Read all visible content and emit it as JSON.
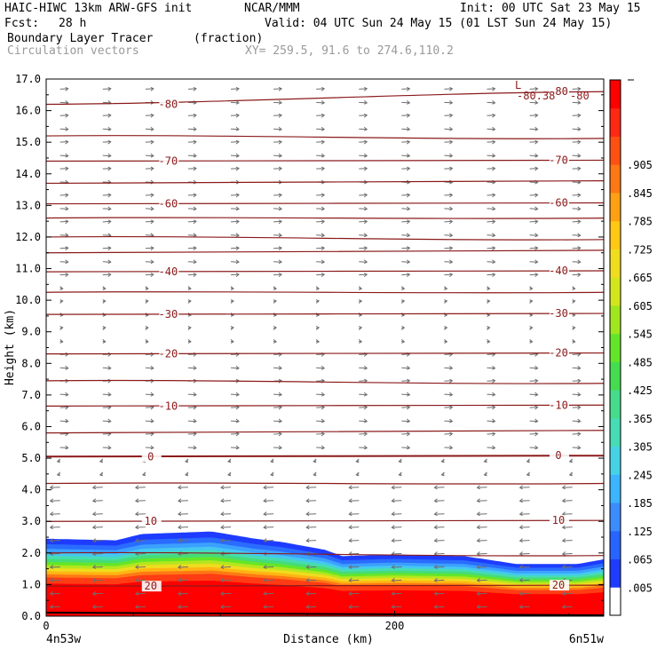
{
  "header": {
    "model": "HAIC-HIWC 13km ARW-GFS init",
    "org": "NCAR/MMM",
    "init": "Init: 00 UTC Sat 23 May 15",
    "fcst_label": "Fcst:",
    "fcst_value": "28 h",
    "valid": "Valid: 04 UTC Sun 24 May 15 (01 LST Sun 24 May 15)",
    "field_name": "Boundary Layer Tracer",
    "field_units": "(fraction)",
    "vector_name": "Circulation vectors",
    "xy_info": "XY= 259.5, 91.6 to 274.6,110.2"
  },
  "colors": {
    "contour": "#8b1a1a",
    "vector": "#6e6e6e",
    "colorbar": [
      "#ffffff",
      "#1e3cff",
      "#2864ff",
      "#3c8cff",
      "#3cb4ff",
      "#46d2e6",
      "#46dcb4",
      "#46dc8c",
      "#46dc50",
      "#64e628",
      "#a0e61e",
      "#d2e61e",
      "#f0dc1e",
      "#ffc814",
      "#ffa014",
      "#ff7814",
      "#ff5014",
      "#ff2814",
      "#ff0000"
    ]
  },
  "chart_data": {
    "type": "cross-section",
    "ylabel": "Height (km)",
    "xlabel": "Distance (km)",
    "ylim": [
      0,
      17
    ],
    "xlim": [
      0,
      320
    ],
    "y_ticks": [
      "0.0",
      "1.0",
      "2.0",
      "3.0",
      "4.0",
      "5.0",
      "6.0",
      "7.0",
      "8.0",
      "9.0",
      "10.0",
      "11.0",
      "12.0",
      "13.0",
      "14.0",
      "15.0",
      "16.0",
      "17.0"
    ],
    "x_ticks": [
      {
        "value": 0,
        "label": "0"
      },
      {
        "value": 200,
        "label": "200"
      }
    ],
    "x_end_labels": [
      "4n53w",
      "6n51w"
    ],
    "colorbar_labels": [
      ".005",
      ".065",
      ".125",
      ".185",
      ".245",
      ".305",
      ".365",
      ".425",
      ".485",
      ".545",
      ".605",
      ".665",
      ".725",
      ".785",
      ".845",
      ".905"
    ],
    "colorbar_levels": [
      0.005,
      0.065,
      0.125,
      0.185,
      0.245,
      0.305,
      0.365,
      0.425,
      0.485,
      0.545,
      0.605,
      0.665,
      0.725,
      0.785,
      0.845,
      0.905
    ],
    "temperature_contours_C": [
      {
        "label": "20",
        "height_km": 0.95
      },
      {
        "label": "10",
        "height_km": 3.0
      },
      {
        "label": "0",
        "height_km": 5.05
      },
      {
        "label": "-10",
        "height_km": 6.65
      },
      {
        "label": "-20",
        "height_km": 8.3
      },
      {
        "label": "-30",
        "height_km": 9.55
      },
      {
        "label": "-40",
        "height_km": 10.9
      },
      {
        "label": "-60",
        "height_km": 13.05
      },
      {
        "label": "-70",
        "height_km": 14.4
      },
      {
        "label": "-80",
        "height_km": 16.2
      }
    ],
    "extra_contours_km": [
      2.0,
      4.2,
      5.8,
      7.45,
      10.25,
      11.5,
      12.0,
      12.6,
      13.7,
      15.2
    ],
    "top_labels": [
      "L",
      "-80.38",
      "-80"
    ],
    "tracer_top_profile": [
      {
        "x": 0,
        "z": 2.45
      },
      {
        "x": 40,
        "z": 2.4
      },
      {
        "x": 55,
        "z": 2.6
      },
      {
        "x": 95,
        "z": 2.68
      },
      {
        "x": 120,
        "z": 2.45
      },
      {
        "x": 135,
        "z": 2.35
      },
      {
        "x": 160,
        "z": 2.1
      },
      {
        "x": 170,
        "z": 1.9
      },
      {
        "x": 200,
        "z": 1.95
      },
      {
        "x": 240,
        "z": 1.9
      },
      {
        "x": 270,
        "z": 1.65
      },
      {
        "x": 305,
        "z": 1.65
      },
      {
        "x": 320,
        "z": 1.8
      }
    ]
  }
}
